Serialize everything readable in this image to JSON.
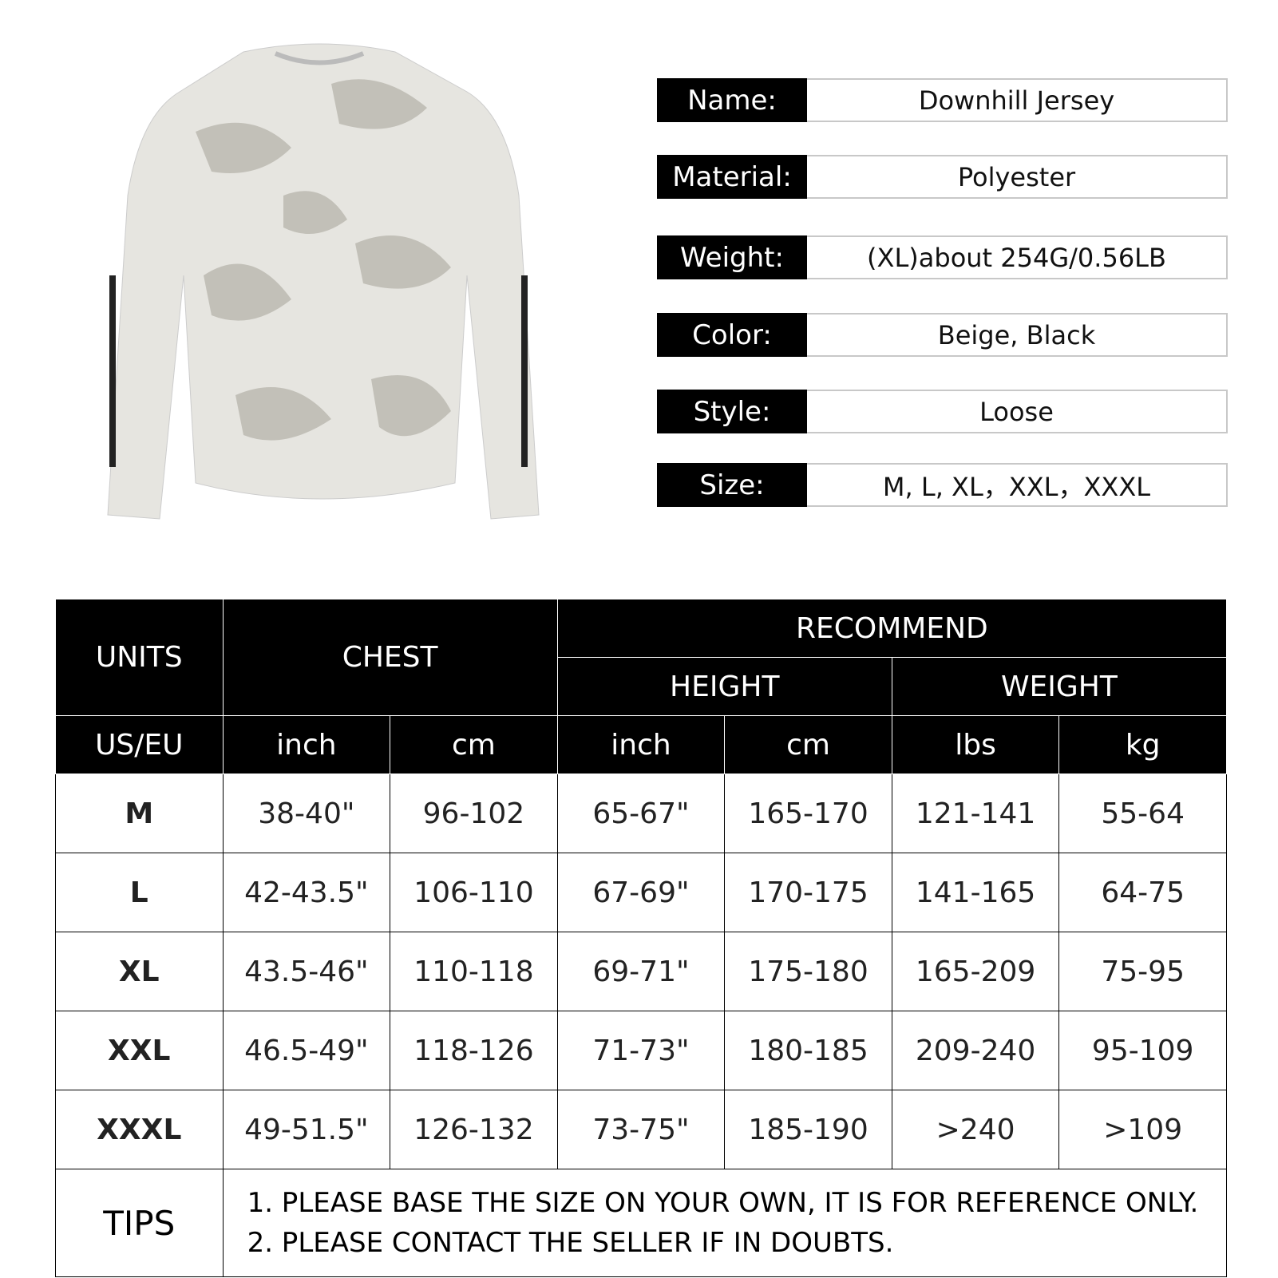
{
  "specs": [
    {
      "label": "Name:",
      "value": "Downhill Jersey"
    },
    {
      "label": "Material:",
      "value": "Polyester"
    },
    {
      "label": "Weight:",
      "value": "(XL)about 254G/0.56LB"
    },
    {
      "label": "Color:",
      "value": "Beige, Black"
    },
    {
      "label": "Style:",
      "value": "Loose"
    },
    {
      "label": "Size:",
      "value": "M, L, XL，XXL，XXXL"
    }
  ],
  "table": {
    "units": "UNITS",
    "chest": "CHEST",
    "recommend": "RECOMMEND",
    "height": "HEIGHT",
    "weight": "WEIGHT",
    "subheaders": [
      "US/EU",
      "inch",
      "cm",
      "inch",
      "cm",
      "lbs",
      "kg"
    ],
    "rows": [
      [
        "M",
        "38-40\"",
        "96-102",
        "65-67\"",
        "165-170",
        "121-141",
        "55-64"
      ],
      [
        "L",
        "42-43.5\"",
        "106-110",
        "67-69\"",
        "170-175",
        "141-165",
        "64-75"
      ],
      [
        "XL",
        "43.5-46\"",
        "110-118",
        "69-71\"",
        "175-180",
        "165-209",
        "75-95"
      ],
      [
        "XXL",
        "46.5-49\"",
        "118-126",
        "71-73\"",
        "180-185",
        "209-240",
        "95-109"
      ],
      [
        "XXXL",
        "49-51.5\"",
        "126-132",
        "73-75\"",
        "185-190",
        ">240",
        ">109"
      ]
    ],
    "tips_label": "TIPS",
    "tips": [
      "1. PLEASE BASE THE SIZE ON YOUR OWN, IT IS FOR REFERENCE ONLY.",
      "2. PLEASE CONTACT THE SELLER IF IN DOUBTS."
    ]
  },
  "colors": {
    "shirt": "#e6e5e0",
    "camo": "#b9b7ae",
    "header": "#000000"
  }
}
